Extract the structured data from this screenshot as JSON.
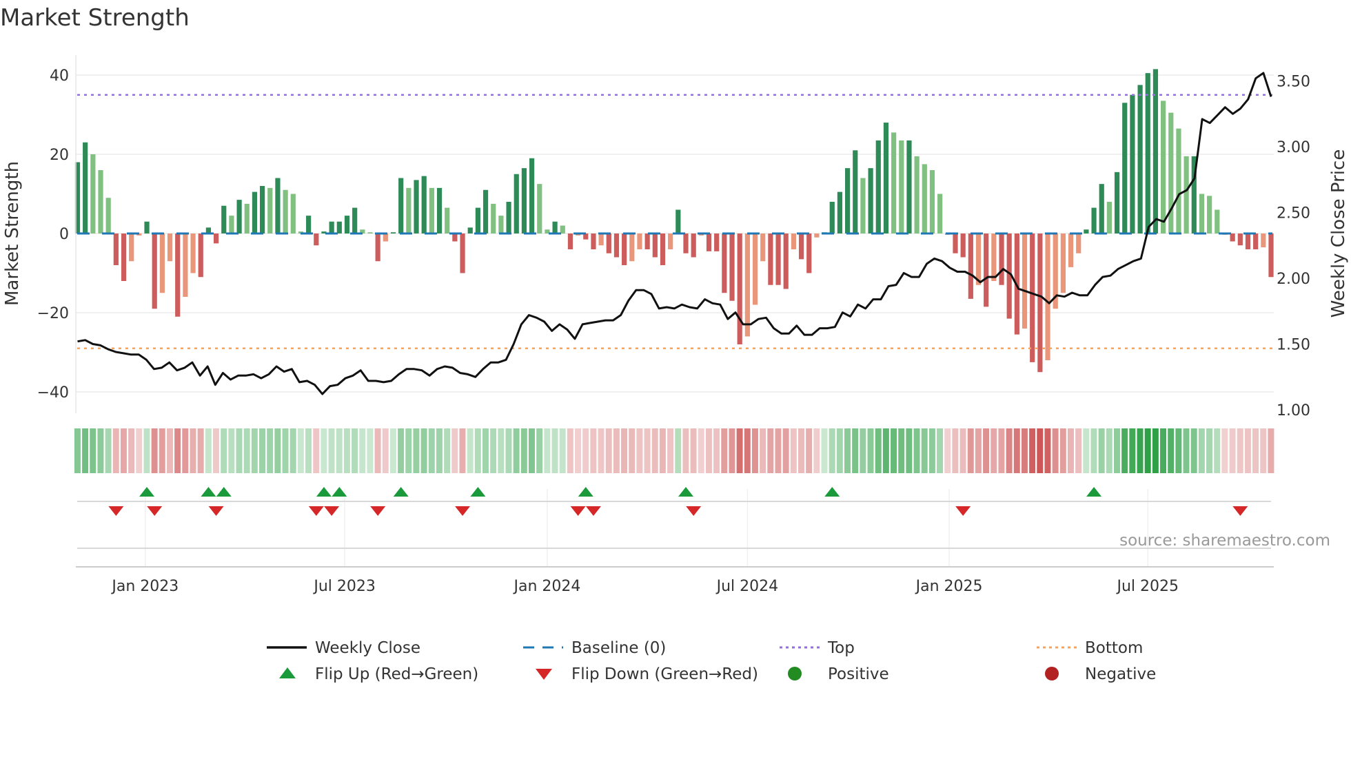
{
  "title": "Market Strength",
  "source": "source: sharemaestro.com",
  "chart_data": {
    "type": "bar",
    "title": "Market Strength",
    "ylabel": "Market Strength",
    "y2label": "Weekly Close Price",
    "ylim": [
      -45,
      42
    ],
    "y2lim": [
      1.0,
      3.6
    ],
    "yticks": [
      40,
      20,
      0,
      -20,
      -40
    ],
    "yticklabels": [
      "40",
      "20",
      "0",
      "−20",
      "−40"
    ],
    "y2ticks": [
      3.5,
      3.0,
      2.5,
      2.0,
      1.5,
      1.0
    ],
    "y2ticklabels": [
      "3.50",
      "3.00",
      "2.50",
      "2.00",
      "1.50",
      "1.00"
    ],
    "top_level": 35,
    "bottom_level": -29,
    "xticks": [
      {
        "week": 8.8,
        "label": "Jan 2023"
      },
      {
        "week": 34.7,
        "label": "Jul 2023"
      },
      {
        "week": 61,
        "label": "Jan 2024"
      },
      {
        "week": 87,
        "label": "Jul 2024"
      },
      {
        "week": 113.2,
        "label": "Jan 2025"
      },
      {
        "week": 139,
        "label": "Jul 2025"
      }
    ],
    "strength": [
      18,
      23,
      20,
      16,
      9,
      -8,
      -12,
      -7,
      -0.5,
      3,
      -19,
      -15,
      -7,
      -21,
      -16,
      -10,
      -11,
      1.5,
      -2.5,
      7,
      4.5,
      8.5,
      7.5,
      10.5,
      12,
      11.5,
      14,
      11,
      10,
      0.5,
      4.5,
      -3,
      0.5,
      3,
      3,
      4.5,
      6.5,
      1,
      0.3,
      -7,
      -2,
      0.3,
      14,
      11.5,
      13.5,
      14.5,
      11.5,
      11.5,
      6.5,
      -2,
      -10,
      1.5,
      6.5,
      11,
      7.5,
      4.5,
      8,
      15,
      16.5,
      19,
      12.5,
      1,
      3,
      2,
      -4,
      -0.5,
      -1.5,
      -4,
      -3,
      -5,
      -6,
      -8,
      -7,
      -4,
      -4,
      -6,
      -8,
      -4,
      6,
      -5,
      -6,
      -0.5,
      -4.5,
      -4.5,
      -15,
      -17,
      -28,
      -26,
      -18,
      -7,
      -13,
      -13,
      -14,
      -4,
      -6.5,
      -10,
      -1,
      0.3,
      8,
      10.5,
      16.5,
      21,
      14,
      16.5,
      23.5,
      28,
      25.5,
      23.5,
      23.5,
      19.5,
      17.5,
      16,
      10,
      -0.3,
      -5,
      -6,
      -16.5,
      -13,
      -18.5,
      -12,
      -13,
      -21.5,
      -25.5,
      -24,
      -32.5,
      -35,
      -32,
      -19,
      -15,
      -8.5,
      -5,
      1,
      6.5,
      12.5,
      8,
      15.5,
      33,
      35,
      37.5,
      40.5,
      41.5,
      33.5,
      30.5,
      26.5,
      19.5,
      19.5,
      10,
      9.5,
      6,
      -0.3,
      -2,
      -3,
      -4,
      -4,
      -3.5,
      -11
    ],
    "weekly_close": [
      1.52,
      1.53,
      1.5,
      1.49,
      1.46,
      1.44,
      1.43,
      1.42,
      1.42,
      1.38,
      1.31,
      1.32,
      1.36,
      1.3,
      1.32,
      1.36,
      1.26,
      1.33,
      1.19,
      1.28,
      1.23,
      1.26,
      1.26,
      1.27,
      1.24,
      1.27,
      1.33,
      1.29,
      1.31,
      1.21,
      1.22,
      1.19,
      1.12,
      1.18,
      1.19,
      1.24,
      1.26,
      1.3,
      1.22,
      1.22,
      1.21,
      1.22,
      1.27,
      1.31,
      1.31,
      1.3,
      1.26,
      1.31,
      1.33,
      1.32,
      1.28,
      1.27,
      1.25,
      1.31,
      1.36,
      1.36,
      1.38,
      1.5,
      1.65,
      1.72,
      1.7,
      1.67,
      1.6,
      1.65,
      1.61,
      1.54,
      1.65,
      1.66,
      1.67,
      1.68,
      1.68,
      1.72,
      1.83,
      1.91,
      1.91,
      1.88,
      1.77,
      1.78,
      1.77,
      1.8,
      1.78,
      1.77,
      1.84,
      1.81,
      1.8,
      1.69,
      1.74,
      1.65,
      1.65,
      1.69,
      1.7,
      1.62,
      1.58,
      1.58,
      1.64,
      1.57,
      1.57,
      1.62,
      1.62,
      1.63,
      1.74,
      1.71,
      1.8,
      1.77,
      1.84,
      1.84,
      1.94,
      1.95,
      2.04,
      2.01,
      2.01,
      2.11,
      2.15,
      2.13,
      2.08,
      2.05,
      2.05,
      2.02,
      1.97,
      2.01,
      2.01,
      2.07,
      2.03,
      1.92,
      1.9,
      1.88,
      1.86,
      1.81,
      1.87,
      1.86,
      1.89,
      1.87,
      1.87,
      1.95,
      2.01,
      2.02,
      2.07,
      2.1,
      2.13,
      2.15,
      2.39,
      2.45,
      2.43,
      2.53,
      2.64,
      2.67,
      2.76,
      3.21,
      3.18,
      3.24,
      3.3,
      3.25,
      3.29,
      3.36,
      3.52,
      3.56,
      3.38
    ],
    "flip_up_weeks": [
      9,
      17,
      19,
      32,
      34,
      42,
      52,
      66,
      79,
      98,
      132
    ],
    "flip_down_weeks": [
      5,
      10,
      18,
      31,
      33,
      39,
      50,
      65,
      67,
      80,
      115,
      151
    ],
    "legend": {
      "placement": "bottom",
      "items": [
        {
          "label": "Weekly Close",
          "type": "line",
          "color": "#111111"
        },
        {
          "label": "Baseline (0)",
          "type": "dash",
          "color": "#1f77b4"
        },
        {
          "label": "Top",
          "type": "dot",
          "color": "#9370db"
        },
        {
          "label": "Bottom",
          "type": "dot",
          "color": "#f4a460"
        },
        {
          "label": "Flip Up (Red→Green)",
          "type": "up",
          "color": "#1a9a3a"
        },
        {
          "label": "Flip Down (Green→Red)",
          "type": "down",
          "color": "#d62728"
        },
        {
          "label": "Positive",
          "type": "circle",
          "color": "#228b22"
        },
        {
          "label": "Negative",
          "type": "circle",
          "color": "#b22222"
        }
      ]
    },
    "colors": {
      "pos_rising": "#2e8b57",
      "pos_falling": "#80c080",
      "neg_falling": "#cd5c5c",
      "neg_rising": "#e9967a",
      "baseline": "#1f77b4",
      "top": "#9370db",
      "bottom": "#f4a460",
      "up": "#1a9a3a",
      "down": "#d62728",
      "line": "#111111"
    }
  }
}
